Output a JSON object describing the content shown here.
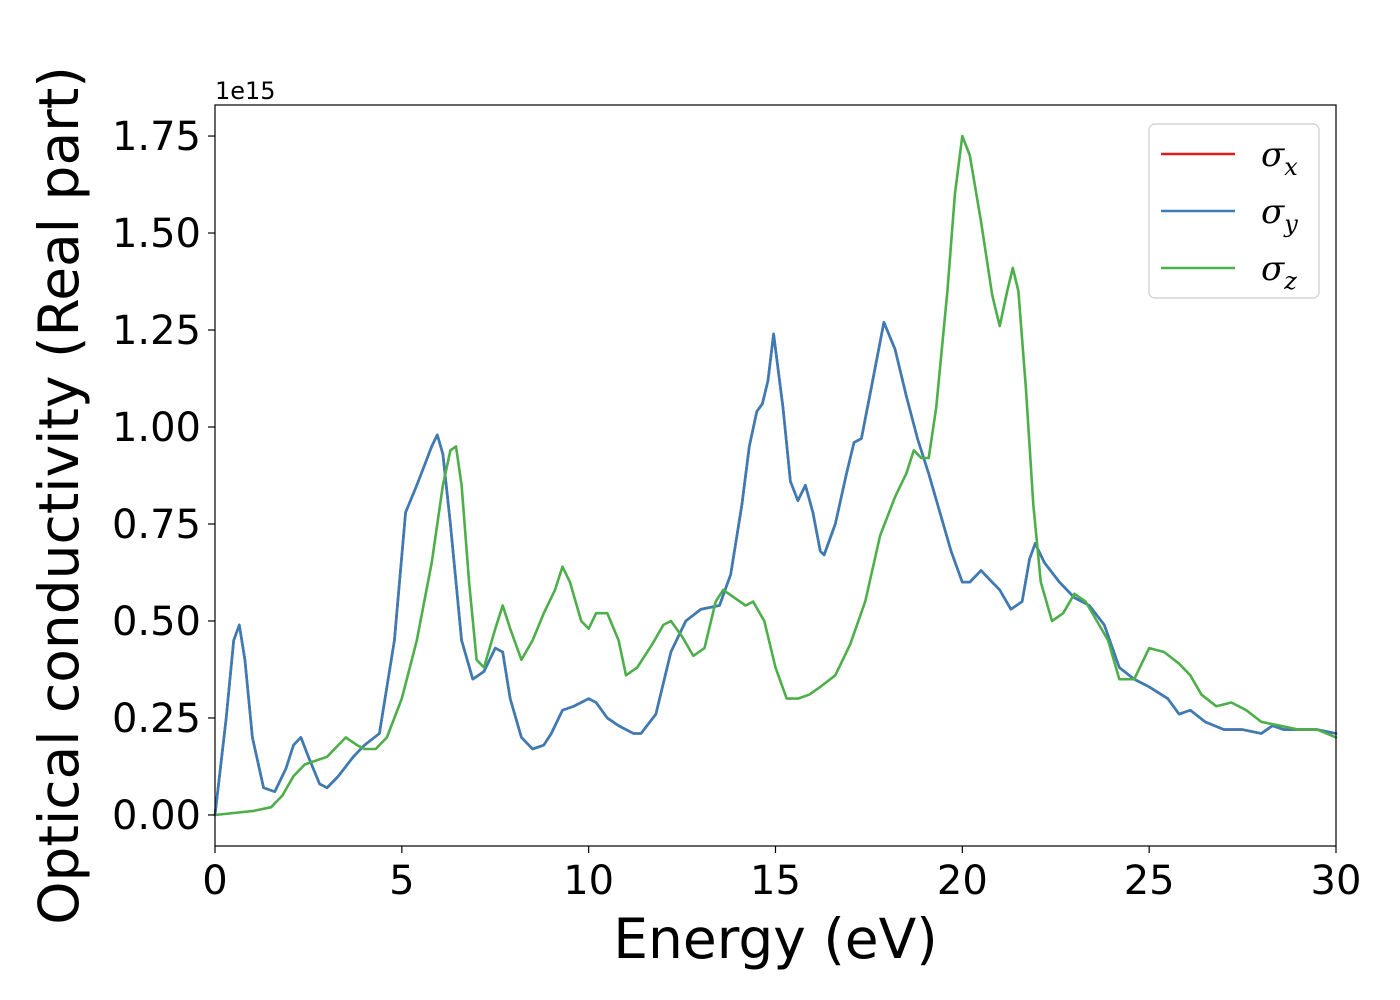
{
  "chart_data": {
    "type": "line",
    "xlabel": "Energy (eV)",
    "ylabel": "Optical conductivity (Real part)",
    "y_offset_text": "1e15",
    "xlim": [
      0,
      30
    ],
    "ylim": [
      -0.08,
      1.83
    ],
    "y_scale_factor": 1000000000000000.0,
    "xticks": [
      0,
      5,
      10,
      15,
      20,
      25,
      30
    ],
    "xtick_labels": [
      "0",
      "5",
      "10",
      "15",
      "20",
      "25",
      "30"
    ],
    "yticks": [
      0.0,
      0.25,
      0.5,
      0.75,
      1.0,
      1.25,
      1.5,
      1.75
    ],
    "ytick_labels": [
      "0.00",
      "0.25",
      "0.50",
      "0.75",
      "1.00",
      "1.25",
      "1.50",
      "1.75"
    ],
    "grid": false,
    "legend_position": "top-right",
    "legend": [
      {
        "symbol": "σ",
        "subscript": "x",
        "color": "#e41a1c"
      },
      {
        "symbol": "σ",
        "subscript": "y",
        "color": "#377eb8"
      },
      {
        "symbol": "σ",
        "subscript": "z",
        "color": "#4daf4a"
      }
    ],
    "series": [
      {
        "subscript": "x",
        "color": "#e41a1c",
        "x": [
          0,
          0.3,
          0.5,
          0.65,
          0.8,
          1.0,
          1.3,
          1.6,
          1.9,
          2.1,
          2.3,
          2.5,
          2.8,
          3.0,
          3.3,
          3.7,
          4.0,
          4.4,
          4.8,
          5.1,
          5.4,
          5.6,
          5.8,
          5.95,
          6.1,
          6.3,
          6.6,
          6.9,
          7.2,
          7.5,
          7.7,
          7.9,
          8.2,
          8.5,
          8.8,
          9.0,
          9.3,
          9.6,
          10.0,
          10.2,
          10.5,
          10.8,
          11.2,
          11.4,
          11.8,
          12.2,
          12.6,
          13.0,
          13.5,
          13.8,
          14.1,
          14.3,
          14.5,
          14.65,
          14.8,
          14.95,
          15.2,
          15.4,
          15.6,
          15.8,
          16.0,
          16.2,
          16.3,
          16.6,
          16.9,
          17.1,
          17.3,
          17.6,
          17.9,
          18.2,
          18.5,
          18.8,
          19.1,
          19.4,
          19.7,
          20.0,
          20.2,
          20.5,
          20.8,
          21.0,
          21.3,
          21.6,
          21.8,
          21.95,
          22.2,
          22.6,
          23.0,
          23.4,
          23.8,
          24.2,
          24.6,
          25.0,
          25.5,
          25.8,
          26.1,
          26.5,
          27.0,
          27.5,
          28.0,
          28.3,
          28.6,
          29.0,
          29.5,
          30.0
        ],
        "y": [
          0.0,
          0.25,
          0.45,
          0.49,
          0.4,
          0.2,
          0.07,
          0.06,
          0.12,
          0.18,
          0.2,
          0.15,
          0.08,
          0.07,
          0.1,
          0.15,
          0.18,
          0.21,
          0.45,
          0.78,
          0.85,
          0.9,
          0.95,
          0.98,
          0.93,
          0.75,
          0.45,
          0.35,
          0.37,
          0.43,
          0.42,
          0.3,
          0.2,
          0.17,
          0.18,
          0.21,
          0.27,
          0.28,
          0.3,
          0.29,
          0.25,
          0.23,
          0.21,
          0.21,
          0.26,
          0.42,
          0.5,
          0.53,
          0.54,
          0.62,
          0.8,
          0.95,
          1.04,
          1.06,
          1.12,
          1.24,
          1.05,
          0.86,
          0.81,
          0.85,
          0.78,
          0.68,
          0.67,
          0.75,
          0.88,
          0.96,
          0.97,
          1.12,
          1.27,
          1.2,
          1.08,
          0.97,
          0.88,
          0.78,
          0.68,
          0.6,
          0.6,
          0.63,
          0.6,
          0.58,
          0.53,
          0.55,
          0.66,
          0.7,
          0.65,
          0.6,
          0.56,
          0.54,
          0.49,
          0.38,
          0.35,
          0.33,
          0.3,
          0.26,
          0.27,
          0.24,
          0.22,
          0.22,
          0.21,
          0.23,
          0.22,
          0.22,
          0.22,
          0.21
        ]
      },
      {
        "subscript": "y",
        "color": "#377eb8",
        "x": [
          0,
          0.3,
          0.5,
          0.65,
          0.8,
          1.0,
          1.3,
          1.6,
          1.9,
          2.1,
          2.3,
          2.5,
          2.8,
          3.0,
          3.3,
          3.7,
          4.0,
          4.4,
          4.8,
          5.1,
          5.4,
          5.6,
          5.8,
          5.95,
          6.1,
          6.3,
          6.6,
          6.9,
          7.2,
          7.5,
          7.7,
          7.9,
          8.2,
          8.5,
          8.8,
          9.0,
          9.3,
          9.6,
          10.0,
          10.2,
          10.5,
          10.8,
          11.2,
          11.4,
          11.8,
          12.2,
          12.6,
          13.0,
          13.5,
          13.8,
          14.1,
          14.3,
          14.5,
          14.65,
          14.8,
          14.95,
          15.2,
          15.4,
          15.6,
          15.8,
          16.0,
          16.2,
          16.3,
          16.6,
          16.9,
          17.1,
          17.3,
          17.6,
          17.9,
          18.2,
          18.5,
          18.8,
          19.1,
          19.4,
          19.7,
          20.0,
          20.2,
          20.5,
          20.8,
          21.0,
          21.3,
          21.6,
          21.8,
          21.95,
          22.2,
          22.6,
          23.0,
          23.4,
          23.8,
          24.2,
          24.6,
          25.0,
          25.5,
          25.8,
          26.1,
          26.5,
          27.0,
          27.5,
          28.0,
          28.3,
          28.6,
          29.0,
          29.5,
          30.0
        ],
        "y": [
          0.0,
          0.25,
          0.45,
          0.49,
          0.4,
          0.2,
          0.07,
          0.06,
          0.12,
          0.18,
          0.2,
          0.15,
          0.08,
          0.07,
          0.1,
          0.15,
          0.18,
          0.21,
          0.45,
          0.78,
          0.85,
          0.9,
          0.95,
          0.98,
          0.93,
          0.75,
          0.45,
          0.35,
          0.37,
          0.43,
          0.42,
          0.3,
          0.2,
          0.17,
          0.18,
          0.21,
          0.27,
          0.28,
          0.3,
          0.29,
          0.25,
          0.23,
          0.21,
          0.21,
          0.26,
          0.42,
          0.5,
          0.53,
          0.54,
          0.62,
          0.8,
          0.95,
          1.04,
          1.06,
          1.12,
          1.24,
          1.05,
          0.86,
          0.81,
          0.85,
          0.78,
          0.68,
          0.67,
          0.75,
          0.88,
          0.96,
          0.97,
          1.12,
          1.27,
          1.2,
          1.08,
          0.97,
          0.88,
          0.78,
          0.68,
          0.6,
          0.6,
          0.63,
          0.6,
          0.58,
          0.53,
          0.55,
          0.66,
          0.7,
          0.65,
          0.6,
          0.56,
          0.54,
          0.49,
          0.38,
          0.35,
          0.33,
          0.3,
          0.26,
          0.27,
          0.24,
          0.22,
          0.22,
          0.21,
          0.23,
          0.22,
          0.22,
          0.22,
          0.21
        ]
      },
      {
        "subscript": "z",
        "color": "#4daf4a",
        "x": [
          0,
          0.5,
          1.0,
          1.5,
          1.8,
          2.1,
          2.4,
          2.7,
          3.0,
          3.3,
          3.5,
          3.8,
          4.0,
          4.3,
          4.6,
          5.0,
          5.4,
          5.8,
          6.1,
          6.3,
          6.45,
          6.6,
          6.8,
          7.0,
          7.2,
          7.5,
          7.7,
          7.9,
          8.2,
          8.5,
          8.8,
          9.1,
          9.3,
          9.5,
          9.8,
          10.0,
          10.2,
          10.5,
          10.8,
          11.0,
          11.3,
          11.7,
          12.0,
          12.2,
          12.5,
          12.8,
          13.1,
          13.4,
          13.6,
          13.9,
          14.2,
          14.4,
          14.7,
          15.0,
          15.3,
          15.6,
          15.9,
          16.2,
          16.6,
          17.0,
          17.4,
          17.8,
          18.2,
          18.5,
          18.7,
          18.9,
          19.1,
          19.3,
          19.6,
          19.8,
          20.0,
          20.2,
          20.5,
          20.8,
          21.0,
          21.2,
          21.35,
          21.5,
          21.7,
          21.9,
          22.1,
          22.4,
          22.7,
          23.0,
          23.3,
          23.6,
          23.9,
          24.2,
          24.6,
          25.0,
          25.4,
          25.8,
          26.1,
          26.4,
          26.8,
          27.2,
          27.6,
          28.0,
          28.5,
          29.0,
          29.5,
          30.0
        ],
        "y": [
          0.0,
          0.005,
          0.01,
          0.02,
          0.05,
          0.1,
          0.13,
          0.14,
          0.15,
          0.18,
          0.2,
          0.18,
          0.17,
          0.17,
          0.2,
          0.3,
          0.45,
          0.65,
          0.85,
          0.94,
          0.95,
          0.85,
          0.6,
          0.4,
          0.38,
          0.48,
          0.54,
          0.48,
          0.4,
          0.45,
          0.52,
          0.58,
          0.64,
          0.6,
          0.5,
          0.48,
          0.52,
          0.52,
          0.45,
          0.36,
          0.38,
          0.44,
          0.49,
          0.5,
          0.46,
          0.41,
          0.43,
          0.55,
          0.58,
          0.56,
          0.54,
          0.55,
          0.5,
          0.38,
          0.3,
          0.3,
          0.31,
          0.33,
          0.36,
          0.44,
          0.55,
          0.72,
          0.82,
          0.88,
          0.94,
          0.92,
          0.92,
          1.05,
          1.35,
          1.6,
          1.75,
          1.7,
          1.53,
          1.34,
          1.26,
          1.35,
          1.41,
          1.35,
          1.1,
          0.8,
          0.6,
          0.5,
          0.52,
          0.57,
          0.55,
          0.5,
          0.45,
          0.35,
          0.35,
          0.43,
          0.42,
          0.39,
          0.36,
          0.31,
          0.28,
          0.29,
          0.27,
          0.24,
          0.23,
          0.22,
          0.22,
          0.2
        ]
      }
    ]
  }
}
